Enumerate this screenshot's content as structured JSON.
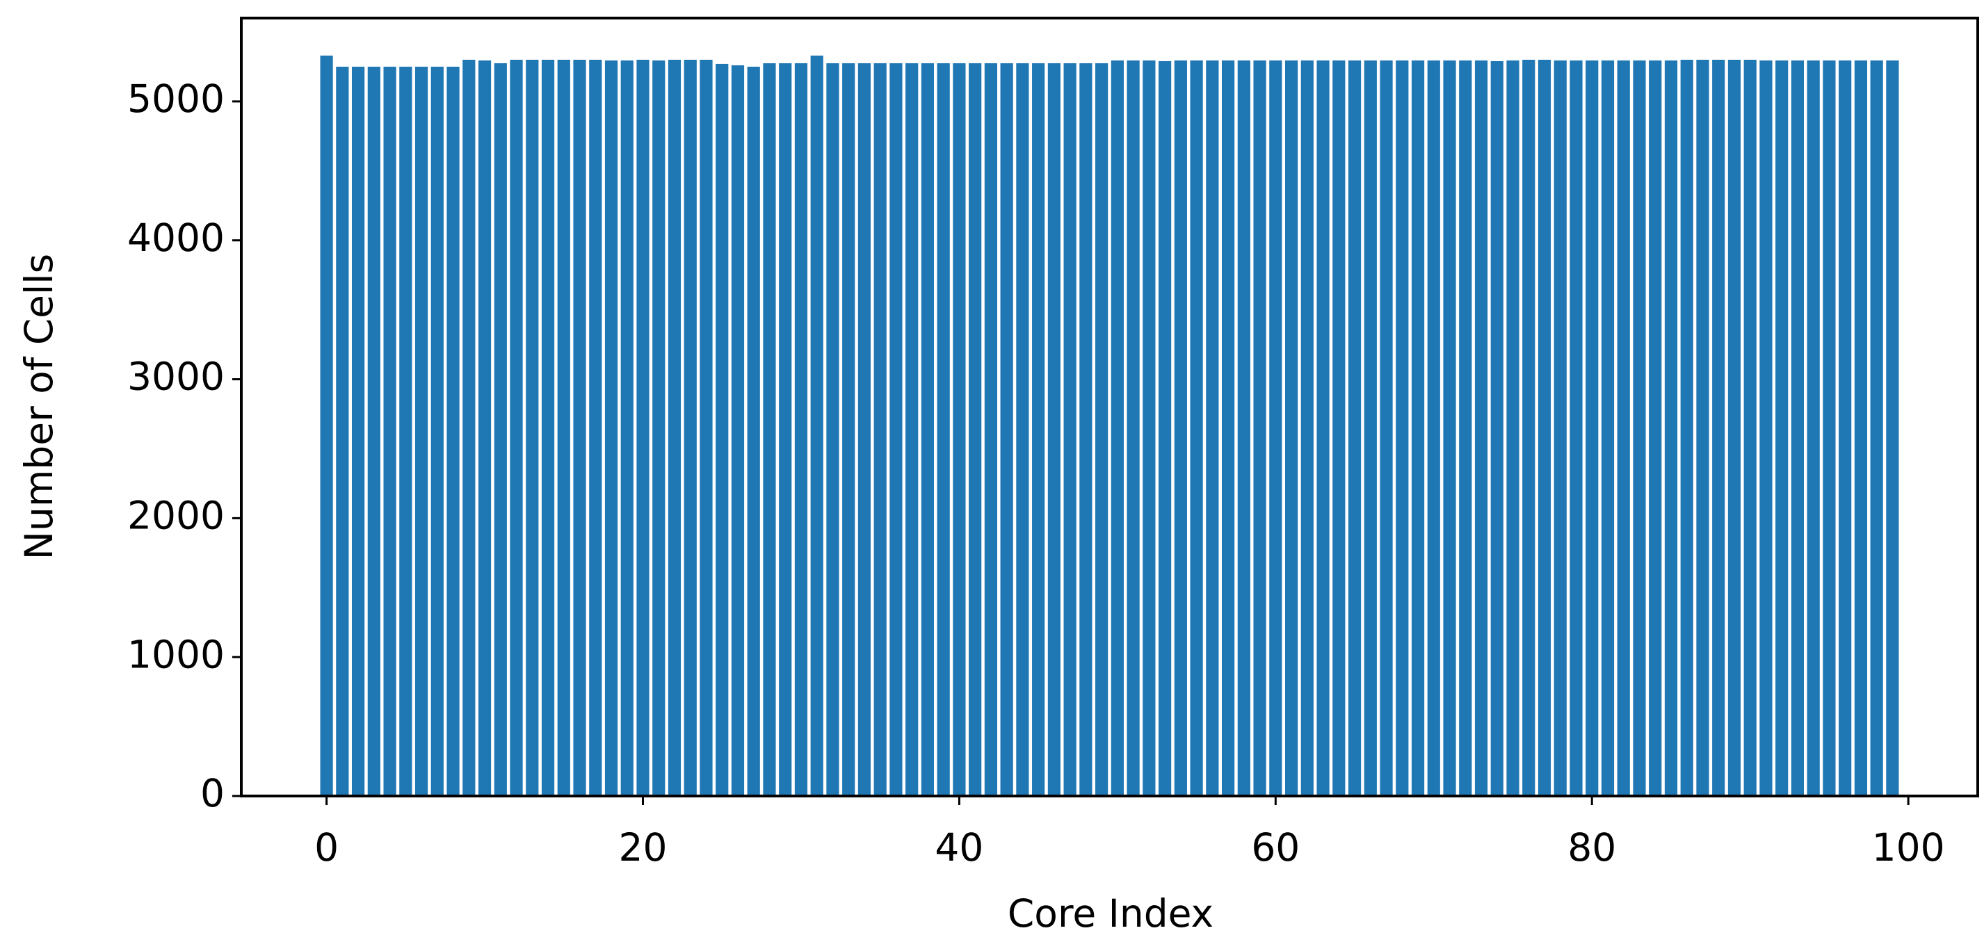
{
  "chart_data": {
    "type": "bar",
    "xlabel": "Core Index",
    "ylabel": "Number of Cells",
    "x": [
      0,
      1,
      2,
      3,
      4,
      5,
      6,
      7,
      8,
      9,
      10,
      11,
      12,
      13,
      14,
      15,
      16,
      17,
      18,
      19,
      20,
      21,
      22,
      23,
      24,
      25,
      26,
      27,
      28,
      29,
      30,
      31,
      32,
      33,
      34,
      35,
      36,
      37,
      38,
      39,
      40,
      41,
      42,
      43,
      44,
      45,
      46,
      47,
      48,
      49,
      50,
      51,
      52,
      53,
      54,
      55,
      56,
      57,
      58,
      59,
      60,
      61,
      62,
      63,
      64,
      65,
      66,
      67,
      68,
      69,
      70,
      71,
      72,
      73,
      74,
      75,
      76,
      77,
      78,
      79,
      80,
      81,
      82,
      83,
      84,
      85,
      86,
      87,
      88,
      89,
      90,
      91,
      92,
      93,
      94,
      95,
      96,
      97,
      98,
      99
    ],
    "values": [
      5330,
      5250,
      5250,
      5250,
      5250,
      5250,
      5250,
      5250,
      5250,
      5300,
      5295,
      5275,
      5300,
      5300,
      5300,
      5300,
      5300,
      5300,
      5295,
      5295,
      5300,
      5295,
      5300,
      5300,
      5300,
      5270,
      5260,
      5250,
      5275,
      5275,
      5275,
      5330,
      5275,
      5275,
      5275,
      5275,
      5275,
      5275,
      5275,
      5275,
      5275,
      5275,
      5275,
      5275,
      5275,
      5275,
      5275,
      5275,
      5275,
      5275,
      5295,
      5295,
      5295,
      5290,
      5295,
      5295,
      5295,
      5295,
      5295,
      5295,
      5295,
      5295,
      5295,
      5295,
      5295,
      5295,
      5295,
      5295,
      5295,
      5295,
      5295,
      5295,
      5295,
      5295,
      5290,
      5295,
      5300,
      5300,
      5295,
      5295,
      5295,
      5295,
      5295,
      5295,
      5295,
      5295,
      5300,
      5300,
      5300,
      5300,
      5300,
      5295,
      5295,
      5295,
      5295,
      5295,
      5295,
      5295,
      5295,
      5295
    ],
    "color": "#1f77b4",
    "xlim": [
      -5.39,
      104.39
    ],
    "xticks": [
      0,
      20,
      40,
      60,
      80,
      100
    ],
    "ylim": [
      0,
      5600
    ],
    "yticks": [
      0,
      1000,
      2000,
      3000,
      4000,
      5000
    ],
    "grid": false
  }
}
